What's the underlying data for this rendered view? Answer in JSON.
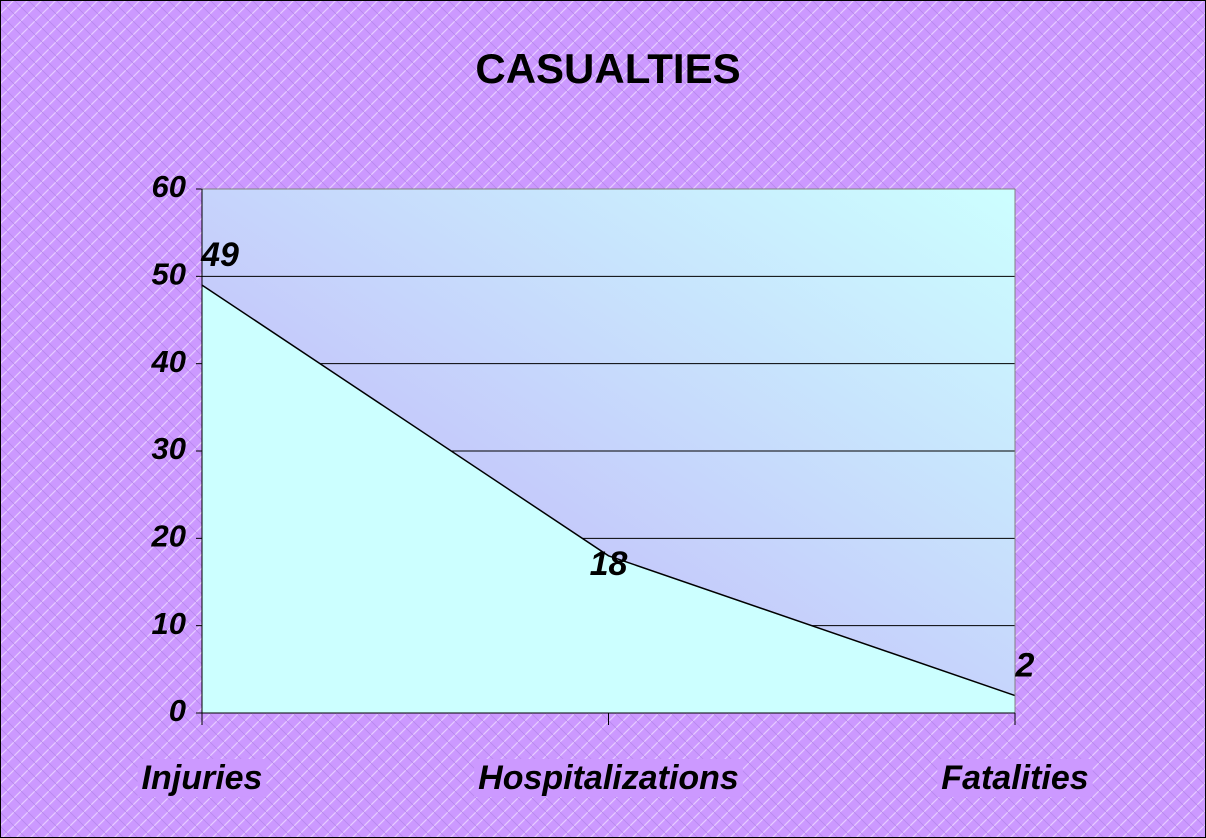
{
  "chart_data": {
    "type": "area",
    "title": "CASUALTIES",
    "categories": [
      "Injuries",
      "Hospitalizations",
      "Fatalities"
    ],
    "values": [
      49,
      18,
      2
    ],
    "color": "#ccffff",
    "ylim": [
      0,
      60
    ],
    "yticks": [
      0,
      10,
      20,
      30,
      40,
      50,
      60
    ],
    "grid": true
  }
}
